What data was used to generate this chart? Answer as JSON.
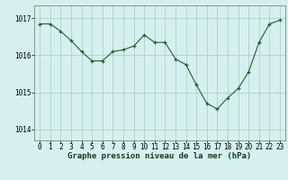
{
  "x": [
    0,
    1,
    2,
    3,
    4,
    5,
    6,
    7,
    8,
    9,
    10,
    11,
    12,
    13,
    14,
    15,
    16,
    17,
    18,
    19,
    20,
    21,
    22,
    23
  ],
  "y": [
    1016.85,
    1016.85,
    1016.65,
    1016.4,
    1016.1,
    1015.85,
    1015.85,
    1016.1,
    1016.15,
    1016.25,
    1016.55,
    1016.35,
    1016.35,
    1015.9,
    1015.75,
    1015.2,
    1014.7,
    1014.55,
    1014.85,
    1015.1,
    1015.55,
    1016.35,
    1016.85,
    1016.95
  ],
  "line_color": "#2d5a27",
  "marker_color": "#2d5a27",
  "bg_color": "#d6f0f0",
  "grid_color": "#a8c8c8",
  "xlabel": "Graphe pression niveau de la mer (hPa)",
  "yticks": [
    1014,
    1015,
    1016,
    1017
  ],
  "ylim": [
    1013.7,
    1017.35
  ],
  "xlim": [
    -0.5,
    23.5
  ],
  "xticks": [
    0,
    1,
    2,
    3,
    4,
    5,
    6,
    7,
    8,
    9,
    10,
    11,
    12,
    13,
    14,
    15,
    16,
    17,
    18,
    19,
    20,
    21,
    22,
    23
  ],
  "tick_fontsize": 5.5,
  "ylabel_fontsize": 6.5,
  "xlabel_fontsize": 6.5,
  "linewidth": 0.8,
  "markersize": 3.5
}
